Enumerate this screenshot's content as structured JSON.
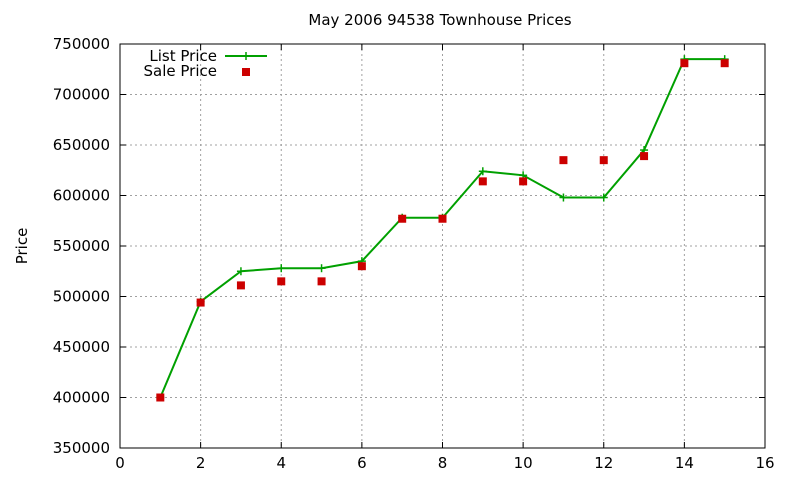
{
  "chart_data": {
    "type": "line",
    "title": "May 2006 94538 Townhouse Prices",
    "xlabel": "",
    "ylabel": "Price",
    "xlim": [
      0,
      16
    ],
    "ylim": [
      350000,
      750000
    ],
    "xticks": [
      0,
      2,
      4,
      6,
      8,
      10,
      12,
      14,
      16
    ],
    "yticks": [
      350000,
      400000,
      450000,
      500000,
      550000,
      600000,
      650000,
      700000,
      750000
    ],
    "grid": true,
    "legend_position": "top-left",
    "series": [
      {
        "name": "List Price",
        "style": "line+cross",
        "color": "#00a000",
        "x": [
          1,
          2,
          3,
          4,
          5,
          6,
          7,
          8,
          9,
          10,
          11,
          12,
          13,
          14,
          15
        ],
        "values": [
          400000,
          495000,
          525000,
          528000,
          528000,
          535000,
          578000,
          578000,
          624000,
          620000,
          598000,
          598000,
          645000,
          735000,
          735000
        ]
      },
      {
        "name": "Sale Price",
        "style": "square",
        "color": "#cc0000",
        "x": [
          1,
          2,
          3,
          4,
          5,
          6,
          7,
          8,
          9,
          10,
          11,
          12,
          13,
          14,
          15
        ],
        "values": [
          400000,
          494000,
          511000,
          515000,
          515000,
          530000,
          577000,
          577000,
          614000,
          614000,
          635000,
          635000,
          639000,
          731000,
          731000
        ]
      }
    ]
  }
}
